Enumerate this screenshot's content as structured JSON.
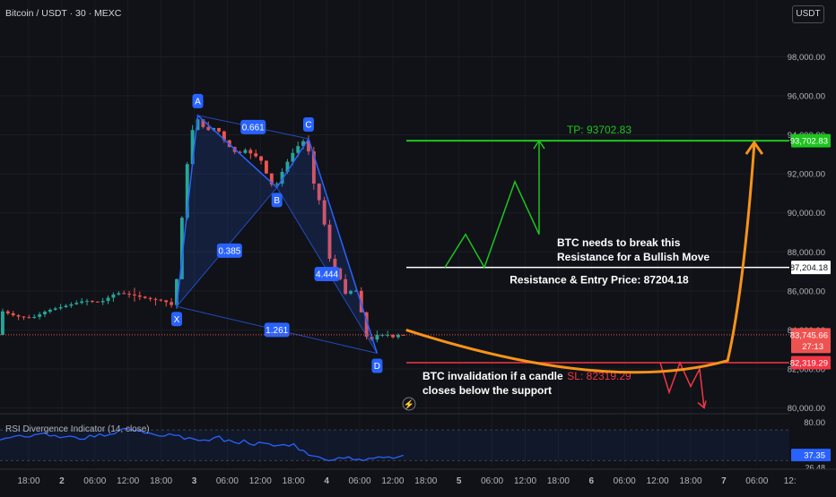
{
  "header": {
    "symbol": "Bitcoin / USDT · 30 · MEXC",
    "currency_badge": "USDT"
  },
  "colors": {
    "background": "#101217",
    "bull": "#26a69a",
    "bear": "#ef5350",
    "pattern": "#2962ff",
    "tp": "#1fc41f",
    "sl": "#f23645",
    "path": "#f7931a",
    "rsi": "#2962ff"
  },
  "chart_data": [
    {
      "type": "candlestick",
      "title": "Bitcoin / USDT · 30 · MEXC",
      "ylim": [
        79200,
        100000
      ],
      "y_ticks": [
        80000,
        82000,
        84000,
        86000,
        88000,
        90000,
        92000,
        94000,
        96000,
        98000
      ],
      "y_tick_labels": [
        "80,000.00",
        "82,000.00",
        "84,000.00",
        "86,000.00",
        "88,000.00",
        "90,000.00",
        "92,000.00",
        "94,000.00",
        "96,000.00",
        "98,000.00"
      ],
      "x_tick_labels": [
        "18:00",
        "2",
        "06:00",
        "12:00",
        "18:00",
        "3",
        "06:00",
        "12:00",
        "18:00",
        "4",
        "06:00",
        "12:00",
        "18:00",
        "5",
        "06:00",
        "12:00",
        "18:00",
        "6",
        "06:00",
        "12:00",
        "18:00",
        "7",
        "06:00",
        "12:"
      ],
      "ohlc_path": [
        {
          "x": 0,
          "y": 85000
        },
        {
          "x": 3,
          "y": 84700
        },
        {
          "x": 6,
          "y": 84600
        },
        {
          "x": 9,
          "y": 85000
        },
        {
          "x": 12,
          "y": 85200
        },
        {
          "x": 16,
          "y": 85500
        },
        {
          "x": 19,
          "y": 85400
        },
        {
          "x": 22,
          "y": 85900
        },
        {
          "x": 25,
          "y": 85800
        },
        {
          "x": 28,
          "y": 85600
        },
        {
          "x": 31,
          "y": 85500
        },
        {
          "x": 33,
          "y": 85200
        },
        {
          "x": 34,
          "y": 88000
        },
        {
          "x": 35,
          "y": 91500
        },
        {
          "x": 36,
          "y": 93500
        },
        {
          "x": 37,
          "y": 95000
        },
        {
          "x": 39,
          "y": 94200
        },
        {
          "x": 41,
          "y": 94400
        },
        {
          "x": 43,
          "y": 93500
        },
        {
          "x": 45,
          "y": 93000
        },
        {
          "x": 47,
          "y": 93300
        },
        {
          "x": 48,
          "y": 92800
        },
        {
          "x": 49,
          "y": 93000
        },
        {
          "x": 51,
          "y": 91700
        },
        {
          "x": 52,
          "y": 91200
        },
        {
          "x": 54,
          "y": 92400
        },
        {
          "x": 56,
          "y": 93300
        },
        {
          "x": 58,
          "y": 93800
        },
        {
          "x": 59,
          "y": 92500
        },
        {
          "x": 60,
          "y": 90500
        },
        {
          "x": 61,
          "y": 90800
        },
        {
          "x": 62,
          "y": 88000
        },
        {
          "x": 63,
          "y": 87300
        },
        {
          "x": 64,
          "y": 87000
        },
        {
          "x": 65,
          "y": 86200
        },
        {
          "x": 66,
          "y": 85500
        },
        {
          "x": 67,
          "y": 86500
        },
        {
          "x": 68,
          "y": 85500
        },
        {
          "x": 69,
          "y": 84300
        },
        {
          "x": 70,
          "y": 83000
        },
        {
          "x": 71,
          "y": 84000
        },
        {
          "x": 72,
          "y": 83500
        },
        {
          "x": 73,
          "y": 84000
        },
        {
          "x": 74,
          "y": 83500
        },
        {
          "x": 75,
          "y": 83750
        },
        {
          "x": 76,
          "y": 83746
        }
      ],
      "harmonic_pattern": {
        "points": [
          {
            "label": "X",
            "x": 33,
            "y": 85200
          },
          {
            "label": "A",
            "x": 37,
            "y": 95000
          },
          {
            "label": "B",
            "x": 52,
            "y": 91300
          },
          {
            "label": "C",
            "x": 58,
            "y": 93800
          },
          {
            "label": "D",
            "x": 71,
            "y": 82800
          }
        ],
        "ratios": [
          "0.661",
          "0.385",
          "4.444",
          "1.261"
        ]
      },
      "levels": [
        {
          "name": "TP",
          "label": "TP: 93702.83",
          "value": 93702.83,
          "price_label": "93,702.83"
        },
        {
          "name": "Resistance & Entry",
          "label": "Resistance & Entry Price: 87204.18",
          "value": 87204.18,
          "price_label": "87,204.18"
        },
        {
          "name": "SL",
          "label": "SL: 82319.29",
          "value": 82319.29,
          "price_label": "82,319.29"
        }
      ],
      "current_price": {
        "value": 83745.66,
        "label": "83,745.66",
        "countdown": "27:13"
      },
      "annotations": [
        {
          "lines": [
            "BTC needs to break this",
            "Resistance for a Bullish Move"
          ]
        },
        {
          "lines": [
            "BTC invalidation if a candle",
            "closes below the support"
          ]
        }
      ],
      "projections": {
        "bull_zigzag": [
          87204,
          88900,
          87204,
          91600,
          88900,
          93702.83
        ],
        "bear_zigzag": [
          82319,
          80800,
          82319,
          81100,
          82000,
          80000
        ],
        "curve": [
          {
            "x": 77,
            "y": 84000
          },
          {
            "x": 115,
            "y": 82700
          },
          {
            "x": 141,
            "y": 86000
          },
          {
            "x": 143,
            "y": 93702.83
          }
        ]
      }
    },
    {
      "type": "line",
      "title": "RSI Divergence Indicator (14, close)",
      "ylim": [
        20,
        90
      ],
      "band": [
        30,
        70
      ],
      "y_tick_labels": [
        "80.00"
      ],
      "current_value": "37.35",
      "clipped_label": "26.48",
      "values": [
        57,
        59,
        60,
        62,
        63,
        61,
        61,
        64,
        65,
        66,
        62,
        63,
        60,
        61,
        62,
        61,
        58,
        58,
        63,
        61,
        65,
        62,
        64,
        65,
        70,
        72,
        71,
        69,
        70,
        66,
        66,
        64,
        62,
        62,
        65,
        63,
        63,
        58,
        60,
        58,
        56,
        57,
        56,
        60,
        62,
        55,
        57,
        54,
        52,
        57,
        52,
        50,
        54,
        53,
        52,
        49,
        50,
        51,
        49,
        52,
        44,
        43,
        37,
        36,
        35,
        32,
        30,
        31,
        34,
        33,
        35,
        31,
        32,
        30,
        33,
        33,
        35,
        34,
        35,
        33,
        35,
        37
      ]
    }
  ]
}
